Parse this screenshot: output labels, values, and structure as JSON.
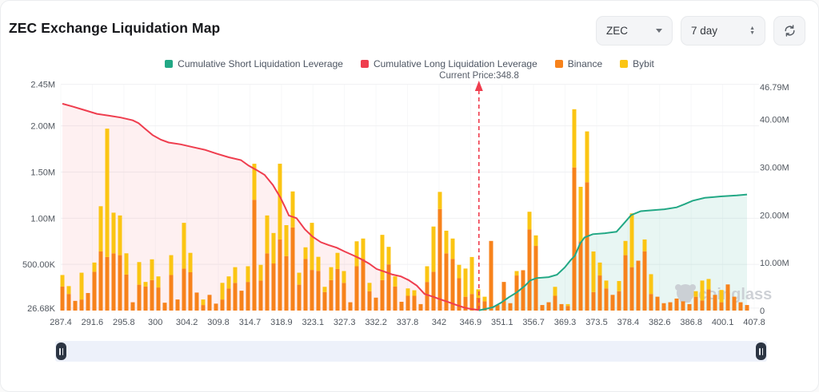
{
  "header": {
    "title": "ZEC Exchange Liquidation Map",
    "symbol_select": {
      "value": "ZEC"
    },
    "timeframe_select": {
      "value": "7 day"
    }
  },
  "legend": {
    "items": [
      {
        "label": "Cumulative Short Liquidation Leverage",
        "color": "#22a885"
      },
      {
        "label": "Cumulative Long Liquidation Leverage",
        "color": "#ef3d4e"
      },
      {
        "label": "Binance",
        "color": "#f7821b"
      },
      {
        "label": "Bybit",
        "color": "#fbc513"
      }
    ]
  },
  "annotation": {
    "current_price": "Current Price:348.8"
  },
  "colors": {
    "long_line": "#ef3d4e",
    "long_fill": "rgba(239,61,78,0.08)",
    "short_line": "#22a885",
    "short_fill": "rgba(34,168,133,0.10)",
    "binance_bar": "#f7821b",
    "bybit_bar": "#fbc513",
    "grid": "#f0f1f3",
    "axis_text": "#50565e",
    "watermark": "#c6cad0"
  },
  "chart_data": {
    "type": "bar",
    "title": "ZEC Exchange Liquidation Map",
    "watermark": "coinglass",
    "x_labels": [
      "287.4",
      "291.6",
      "295.8",
      "300",
      "304.2",
      "309.8",
      "314.7",
      "318.9",
      "323.1",
      "327.3",
      "332.2",
      "337.8",
      "342",
      "346.9",
      "351.1",
      "356.7",
      "369.3",
      "373.5",
      "378.4",
      "382.6",
      "386.8",
      "400.1",
      "407.8"
    ],
    "left_axis": {
      "ticks": [
        "26.68K",
        "500.00K",
        "1.00M",
        "1.50M",
        "2.00M",
        "2.45M"
      ],
      "tick_values_k": [
        26.68,
        500,
        1000,
        1500,
        2000,
        2450
      ],
      "max_k": 2450
    },
    "right_axis": {
      "ticks": [
        "0",
        "10.00M",
        "20.00M",
        "30.00M",
        "40.00M",
        "46.79M"
      ],
      "tick_values_m": [
        0,
        10,
        20,
        30,
        40,
        46.79
      ],
      "max_m": 46.79
    },
    "series": [
      {
        "name": "Binance",
        "type": "bar",
        "axis": "left",
        "unit": "K"
      },
      {
        "name": "Bybit",
        "type": "bar",
        "axis": "left",
        "unit": "K"
      },
      {
        "name": "Cumulative Long Liquidation Leverage",
        "type": "line",
        "axis": "left",
        "unit": "M"
      },
      {
        "name": "Cumulative Short Liquidation Leverage",
        "type": "line",
        "axis": "right",
        "unit": "M"
      }
    ],
    "bars_stacked_k": [
      [
        260,
        125
      ],
      [
        180,
        85
      ],
      [
        105,
        0
      ],
      [
        120,
        290
      ],
      [
        190,
        0
      ],
      [
        420,
        100
      ],
      [
        640,
        490
      ],
      [
        580,
        1390
      ],
      [
        620,
        440
      ],
      [
        600,
        430
      ],
      [
        390,
        230
      ],
      [
        90,
        0
      ],
      [
        280,
        245
      ],
      [
        260,
        50
      ],
      [
        330,
        225
      ],
      [
        250,
        120
      ],
      [
        85,
        0
      ],
      [
        385,
        215
      ],
      [
        120,
        0
      ],
      [
        455,
        495
      ],
      [
        415,
        210
      ],
      [
        195,
        0
      ],
      [
        60,
        60
      ],
      [
        170,
        0
      ],
      [
        75,
        0
      ],
      [
        120,
        180
      ],
      [
        240,
        130
      ],
      [
        300,
        170
      ],
      [
        215,
        0
      ],
      [
        310,
        170
      ],
      [
        1200,
        390
      ],
      [
        325,
        170
      ],
      [
        620,
        410
      ],
      [
        510,
        330
      ],
      [
        770,
        820
      ],
      [
        590,
        335
      ],
      [
        900,
        390
      ],
      [
        280,
        130
      ],
      [
        560,
        125
      ],
      [
        440,
        510
      ],
      [
        430,
        152
      ],
      [
        200,
        57
      ],
      [
        330,
        140
      ],
      [
        450,
        175
      ],
      [
        300,
        128
      ],
      [
        90,
        0
      ],
      [
        480,
        270
      ],
      [
        560,
        220
      ],
      [
        210,
        90
      ],
      [
        140,
        0
      ],
      [
        330,
        490
      ],
      [
        500,
        190
      ],
      [
        260,
        110
      ],
      [
        95,
        0
      ],
      [
        160,
        80
      ],
      [
        160,
        60
      ],
      [
        70,
        0
      ],
      [
        310,
        170
      ],
      [
        420,
        490
      ],
      [
        1100,
        185
      ],
      [
        620,
        245
      ],
      [
        560,
        220
      ],
      [
        350,
        145
      ],
      [
        150,
        305
      ],
      [
        180,
        400
      ],
      [
        140,
        90
      ],
      [
        100,
        50
      ],
      [
        754,
        0
      ],
      [
        60,
        0
      ],
      [
        310,
        0
      ],
      [
        80,
        0
      ],
      [
        380,
        48
      ],
      [
        437,
        0
      ],
      [
        880,
        190
      ],
      [
        700,
        114
      ],
      [
        60,
        0
      ],
      [
        90,
        0
      ],
      [
        160,
        97
      ],
      [
        70,
        0
      ],
      [
        50,
        20
      ],
      [
        1550,
        630
      ],
      [
        750,
        590
      ],
      [
        1390,
        550
      ],
      [
        200,
        440
      ],
      [
        380,
        140
      ],
      [
        240,
        85
      ],
      [
        170,
        0
      ],
      [
        210,
        110
      ],
      [
        600,
        154
      ],
      [
        470,
        583
      ],
      [
        540,
        0
      ],
      [
        642,
        128
      ],
      [
        180,
        214
      ],
      [
        150,
        0
      ],
      [
        80,
        0
      ],
      [
        90,
        0
      ],
      [
        130,
        0
      ],
      [
        100,
        0
      ],
      [
        70,
        0
      ],
      [
        150,
        60
      ],
      [
        110,
        215
      ],
      [
        230,
        112
      ],
      [
        170,
        0
      ],
      [
        90,
        133
      ],
      [
        283,
        0
      ],
      [
        150,
        0
      ],
      [
        90,
        0
      ],
      [
        60,
        0
      ]
    ],
    "long_line_m": [
      [
        0,
        2.24
      ],
      [
        1.6,
        2.21
      ],
      [
        3.5,
        2.17
      ],
      [
        5.4,
        2.13
      ],
      [
        7.3,
        2.11
      ],
      [
        9.1,
        2.09
      ],
      [
        11,
        2.06
      ],
      [
        11.9,
        2.03
      ],
      [
        12.9,
        1.97
      ],
      [
        14.1,
        1.9
      ],
      [
        15.4,
        1.85
      ],
      [
        16.6,
        1.82
      ],
      [
        18.5,
        1.8
      ],
      [
        20.4,
        1.77
      ],
      [
        22.3,
        1.74
      ],
      [
        24.1,
        1.7
      ],
      [
        26,
        1.66
      ],
      [
        27.9,
        1.63
      ],
      [
        29.1,
        1.57
      ],
      [
        30.4,
        1.52
      ],
      [
        31.6,
        1.47
      ],
      [
        32.9,
        1.36
      ],
      [
        34.1,
        1.22
      ],
      [
        34.8,
        1.12
      ],
      [
        35.4,
        1.03
      ],
      [
        36.6,
        1.0
      ],
      [
        37.9,
        0.88
      ],
      [
        39.1,
        0.8
      ],
      [
        40.4,
        0.74
      ],
      [
        41.6,
        0.71
      ],
      [
        42.9,
        0.68
      ],
      [
        44.1,
        0.64
      ],
      [
        45.4,
        0.6
      ],
      [
        46.6,
        0.56
      ],
      [
        47.9,
        0.51
      ],
      [
        49.1,
        0.45
      ],
      [
        50.4,
        0.42
      ],
      [
        51.6,
        0.39
      ],
      [
        52.9,
        0.37
      ],
      [
        54.1,
        0.33
      ],
      [
        55.4,
        0.27
      ],
      [
        56.6,
        0.18
      ],
      [
        57.9,
        0.15
      ],
      [
        59.1,
        0.12
      ],
      [
        60.4,
        0.09
      ],
      [
        61.6,
        0.06
      ],
      [
        62.9,
        0.03
      ],
      [
        64.1,
        0.015
      ],
      [
        65.1,
        0.005
      ]
    ],
    "short_line_m": [
      [
        65.1,
        0.05
      ],
      [
        66,
        0.3
      ],
      [
        67.3,
        0.7
      ],
      [
        68.5,
        1.6
      ],
      [
        69.8,
        2.8
      ],
      [
        71,
        3.8
      ],
      [
        72.3,
        5.2
      ],
      [
        73.1,
        6.3
      ],
      [
        74.1,
        6.8
      ],
      [
        76,
        7.0
      ],
      [
        77.3,
        7.5
      ],
      [
        78.5,
        9.0
      ],
      [
        79.4,
        10.5
      ],
      [
        80.1,
        11.5
      ],
      [
        80.9,
        14.0
      ],
      [
        81.6,
        15.3
      ],
      [
        82.9,
        16.0
      ],
      [
        84.8,
        16.2
      ],
      [
        86.6,
        16.5
      ],
      [
        87.6,
        18.0
      ],
      [
        88.9,
        20.0
      ],
      [
        90.4,
        20.8
      ],
      [
        92.3,
        21.0
      ],
      [
        94.1,
        21.2
      ],
      [
        96,
        21.6
      ],
      [
        97.3,
        22.3
      ],
      [
        98.5,
        23.0
      ],
      [
        100.4,
        23.6
      ],
      [
        102.9,
        23.9
      ],
      [
        105.4,
        24.1
      ],
      [
        107,
        24.3
      ]
    ],
    "current_price": {
      "value": 348.8,
      "slot": 65.1,
      "label": "Current Price:348.8"
    }
  }
}
